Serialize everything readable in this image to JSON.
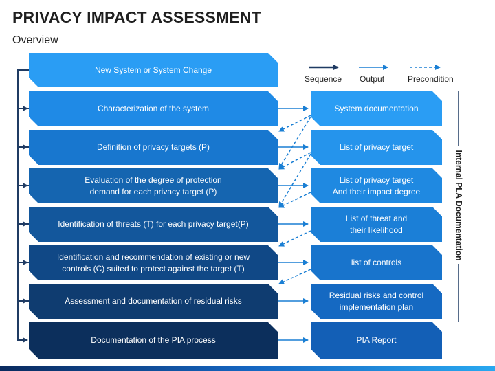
{
  "title": "PRIVACY IMPACT ASSESSMENT",
  "subtitle": "Overview",
  "legend": {
    "sequence": "Sequence",
    "output": "Output",
    "precondition": "Precondition"
  },
  "side_label": "Internal PLA Documentation",
  "steps": [
    {
      "label": "New System or System Change",
      "color": "#2a9df4"
    },
    {
      "label": "Characterization of the system",
      "color": "#1f8ae6"
    },
    {
      "label": "Definition of privacy targets (P)",
      "color": "#1877cf"
    },
    {
      "label": "Evaluation of the degree of protection\ndemand for each privacy target (P)",
      "color": "#1565b0"
    },
    {
      "label": "Identification of threats (T) for each privacy target(P)",
      "color": "#13579c"
    },
    {
      "label": "Identification and recommendation of existing or new\ncontrols (C) suited to protect against the target (T)",
      "color": "#104886"
    },
    {
      "label": "Assessment and documentation of residual risks",
      "color": "#0f3c70"
    },
    {
      "label": "Documentation of the PIA process",
      "color": "#0c2f5c"
    }
  ],
  "outputs": [
    {
      "label": "System documentation",
      "color": "#2a9df4"
    },
    {
      "label": "List of privacy target",
      "color": "#2594ec"
    },
    {
      "label": "List of privacy target\nAnd their impact degree",
      "color": "#1f89e1"
    },
    {
      "label": "List of threat and\ntheir likelihood",
      "color": "#1b7fd7"
    },
    {
      "label": "list of controls",
      "color": "#1874cc"
    },
    {
      "label": "Residual risks and control\nimplementation plan",
      "color": "#1569c2"
    },
    {
      "label": "PIA Report",
      "color": "#135fb6"
    }
  ]
}
